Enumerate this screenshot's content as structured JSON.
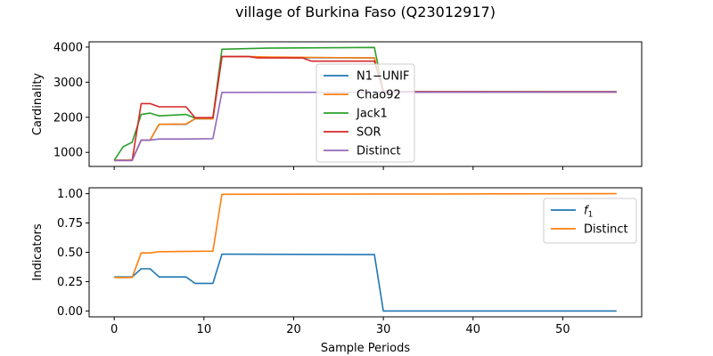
{
  "figure": {
    "title": "village of Burkina Faso (Q23012917)"
  },
  "chart_data": [
    {
      "type": "line",
      "title": "",
      "xlabel": "",
      "ylabel": "Cardinality",
      "xlim": [
        -2.8,
        58.8
      ],
      "ylim": [
        600,
        4150
      ],
      "xticks": [
        0,
        10,
        20,
        30,
        40,
        50
      ],
      "yticks": [
        1000,
        2000,
        3000,
        4000
      ],
      "show_xtick_labels": false,
      "grid": false,
      "legend": "center",
      "series": [
        {
          "name": "N1−UNIF",
          "color": "#1f77b4",
          "points": [
            [
              0,
              780
            ],
            [
              1,
              780
            ],
            [
              2,
              790
            ],
            [
              3,
              1350
            ],
            [
              4,
              1350
            ],
            [
              5,
              1800
            ],
            [
              8,
              1800
            ],
            [
              9,
              1960
            ],
            [
              11,
              1960
            ],
            [
              12,
              3730
            ],
            [
              15,
              3730
            ],
            [
              17,
              3700
            ],
            [
              29,
              3690
            ],
            [
              30,
              2720
            ],
            [
              56,
              2720
            ]
          ]
        },
        {
          "name": "Chao92",
          "color": "#ff7f0e",
          "points": [
            [
              0,
              780
            ],
            [
              1,
              780
            ],
            [
              2,
              790
            ],
            [
              3,
              1350
            ],
            [
              4,
              1350
            ],
            [
              5,
              1800
            ],
            [
              8,
              1810
            ],
            [
              9,
              1960
            ],
            [
              11,
              1960
            ],
            [
              12,
              3730
            ],
            [
              15,
              3730
            ],
            [
              17,
              3720
            ],
            [
              29,
              3690
            ],
            [
              30,
              2720
            ],
            [
              56,
              2720
            ]
          ]
        },
        {
          "name": "Jack1",
          "color": "#2ca02c",
          "points": [
            [
              0,
              780
            ],
            [
              1,
              1160
            ],
            [
              2,
              1290
            ],
            [
              3,
              2080
            ],
            [
              4,
              2120
            ],
            [
              5,
              2040
            ],
            [
              8,
              2080
            ],
            [
              9,
              1980
            ],
            [
              11,
              1990
            ],
            [
              12,
              3940
            ],
            [
              17,
              3970
            ],
            [
              29,
              3990
            ],
            [
              30,
              2730
            ],
            [
              56,
              2730
            ]
          ]
        },
        {
          "name": "SOR",
          "color": "#d62728",
          "points": [
            [
              0,
              770
            ],
            [
              2,
              770
            ],
            [
              3,
              2390
            ],
            [
              4,
              2390
            ],
            [
              5,
              2300
            ],
            [
              8,
              2300
            ],
            [
              9,
              1990
            ],
            [
              11,
              1990
            ],
            [
              12,
              3730
            ],
            [
              15,
              3730
            ],
            [
              16,
              3690
            ],
            [
              21,
              3690
            ],
            [
              22,
              3600
            ],
            [
              29,
              3600
            ],
            [
              30,
              2730
            ],
            [
              56,
              2730
            ]
          ]
        },
        {
          "name": "Distinct",
          "color": "#9467bd",
          "points": [
            [
              0,
              770
            ],
            [
              2,
              770
            ],
            [
              3,
              1350
            ],
            [
              4,
              1350
            ],
            [
              5,
              1380
            ],
            [
              8,
              1380
            ],
            [
              11,
              1390
            ],
            [
              12,
              2710
            ],
            [
              56,
              2720
            ]
          ]
        }
      ]
    },
    {
      "type": "line",
      "title": "",
      "xlabel": "Sample Periods",
      "ylabel": "Indicators",
      "xlim": [
        -2.8,
        58.8
      ],
      "ylim": [
        -0.05,
        1.05
      ],
      "xticks": [
        0,
        10,
        20,
        30,
        40,
        50
      ],
      "yticks": [
        0.0,
        0.25,
        0.5,
        0.75,
        1.0
      ],
      "ytick_labels": [
        "0.00",
        "0.25",
        "0.50",
        "0.75",
        "1.00"
      ],
      "show_xtick_labels": true,
      "grid": false,
      "legend": "upper right",
      "series": [
        {
          "name": "f",
          "name_subscript": "1",
          "color": "#1f77b4",
          "points": [
            [
              0,
              0.29
            ],
            [
              2,
              0.29
            ],
            [
              3,
              0.36
            ],
            [
              4,
              0.36
            ],
            [
              5,
              0.29
            ],
            [
              8,
              0.29
            ],
            [
              9,
              0.235
            ],
            [
              11,
              0.235
            ],
            [
              12,
              0.485
            ],
            [
              29,
              0.48
            ],
            [
              30,
              0.0
            ],
            [
              56,
              0.0
            ]
          ]
        },
        {
          "name": "Distinct",
          "color": "#ff7f0e",
          "points": [
            [
              0,
              0.285
            ],
            [
              2,
              0.285
            ],
            [
              3,
              0.495
            ],
            [
              4,
              0.495
            ],
            [
              5,
              0.505
            ],
            [
              11,
              0.51
            ],
            [
              12,
              0.995
            ],
            [
              56,
              1.0
            ]
          ]
        }
      ]
    }
  ]
}
